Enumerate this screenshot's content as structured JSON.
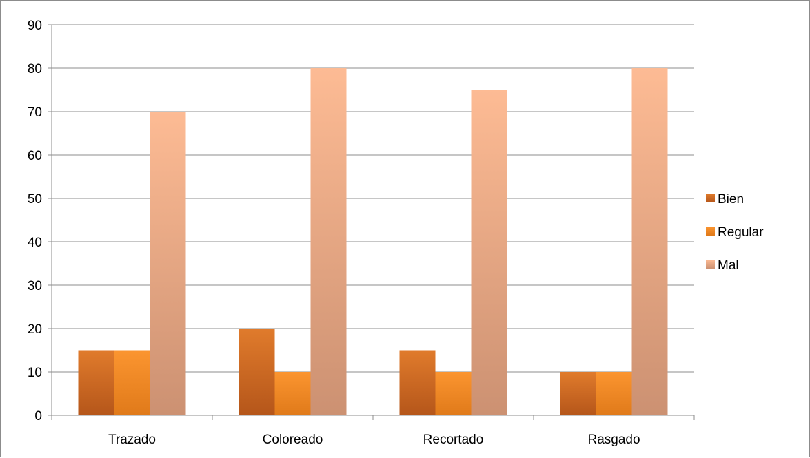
{
  "chart_data": {
    "type": "bar",
    "categories": [
      "Trazado",
      "Coloreado",
      "Recortado",
      "Rasgado"
    ],
    "series": [
      {
        "name": "Bien",
        "values": [
          15,
          20,
          15,
          10
        ],
        "color": "#d4691f",
        "color_light": "#e07b2c",
        "color_dark": "#b5561a"
      },
      {
        "name": "Regular",
        "values": [
          15,
          10,
          10,
          10
        ],
        "color": "#f58a20",
        "color_light": "#fb9530",
        "color_dark": "#e07a1a"
      },
      {
        "name": "Mal",
        "values": [
          70,
          80,
          75,
          80
        ],
        "color": "#f4b08a",
        "color_light": "#fdbb94",
        "color_dark": "#cc9172"
      }
    ],
    "ylim": [
      0,
      90
    ],
    "yticks": [
      "0",
      "10",
      "20",
      "30",
      "40",
      "50",
      "60",
      "70",
      "80",
      "90"
    ],
    "grid": true,
    "legend": "right",
    "title": "",
    "xlabel": "",
    "ylabel": ""
  }
}
